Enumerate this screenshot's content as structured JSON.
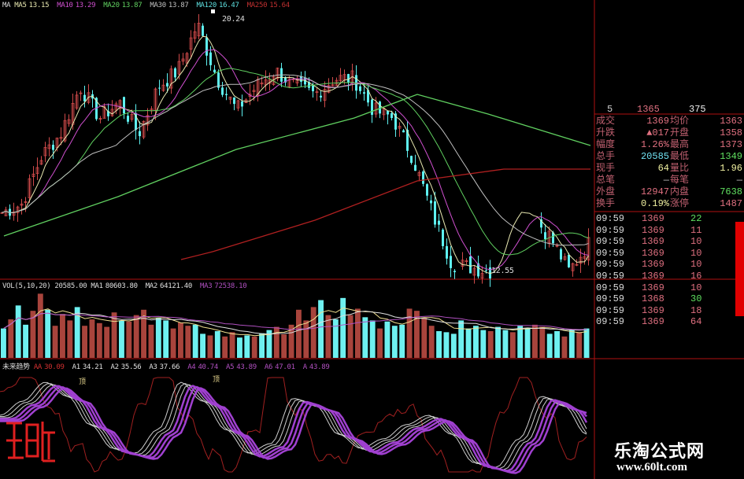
{
  "colors": {
    "up": "#d04a4a",
    "down": "#5ef0f0",
    "ma5": "#ffffff",
    "ma10": "#d050d0",
    "ma20": "#60d060",
    "ma30": "#c0c0c0",
    "ma120": "#5ee0e0",
    "ma250": "#c03030",
    "border": "#b01010"
  },
  "price_legend": {
    "label": "MA",
    "items": [
      {
        "name": "MA5",
        "value": "13.15",
        "color": "#e8e8b0"
      },
      {
        "name": "MA10",
        "value": "13.29",
        "color": "#d050d0"
      },
      {
        "name": "MA20",
        "value": "13.87",
        "color": "#60d060"
      },
      {
        "name": "MA30",
        "value": "13.87",
        "color": "#c0c0c0"
      },
      {
        "name": "MA120",
        "value": "16.47",
        "color": "#5ee0e0"
      },
      {
        "name": "MA250",
        "value": "15.64",
        "color": "#c03030"
      }
    ]
  },
  "annotations": {
    "high": "20.24",
    "low": "12.55",
    "top_marker": "顶"
  },
  "volume_legend": {
    "label": "VOL(5,10,20)",
    "value": "20585.00",
    "items": [
      {
        "name": "MA1",
        "value": "80603.80",
        "color": "#e0e0e0"
      },
      {
        "name": "MA2",
        "value": "64121.40",
        "color": "#e0e0e0"
      },
      {
        "name": "MA3",
        "value": "72538.10",
        "color": "#b050c0"
      }
    ]
  },
  "indicator_legend": {
    "label": "未来趋势",
    "items": [
      {
        "name": "AA",
        "value": "30.09",
        "color": "#d03030"
      },
      {
        "name": "A1",
        "value": "34.21",
        "color": "#e0e0e0"
      },
      {
        "name": "A2",
        "value": "35.56",
        "color": "#e0e0e0"
      },
      {
        "name": "A3",
        "value": "37.66",
        "color": "#e0e0e0"
      },
      {
        "name": "A4",
        "value": "40.74",
        "color": "#b050c0"
      },
      {
        "name": "A5",
        "value": "43.89",
        "color": "#b050c0"
      },
      {
        "name": "A6",
        "value": "47.01",
        "color": "#b050c0"
      },
      {
        "name": "A",
        "value": "43.89",
        "color": "#b050c0"
      }
    ]
  },
  "quote_panel": {
    "top_rows": [
      {
        "label": "5",
        "price": "1365",
        "vol": "375"
      }
    ],
    "rows": [
      {
        "l1": "成交",
        "v1": "1369",
        "c1": "#e07080",
        "l2": "均价",
        "v2": "1363",
        "c2": "#e07080"
      },
      {
        "l1": "升跌",
        "v1": "▲017",
        "c1": "#e07080",
        "l2": "开盘",
        "v2": "1358",
        "c2": "#e07080"
      },
      {
        "l1": "幅度",
        "v1": "1.26%",
        "c1": "#e07080",
        "l2": "最高",
        "v2": "1373",
        "c2": "#e07080"
      },
      {
        "l1": "总手",
        "v1": "20585",
        "c1": "#70e0f0",
        "l2": "最低",
        "v2": "1349",
        "c2": "#60e060"
      },
      {
        "l1": "现手",
        "v1": "64",
        "c1": "#f0f0a0",
        "l2": "量比",
        "v2": "1.96",
        "c2": "#f0f0a0"
      },
      {
        "l1": "总笔",
        "v1": "—",
        "c1": "#c0c0c0",
        "l2": "每笔",
        "v2": "—",
        "c2": "#c0c0c0"
      },
      {
        "l1": "外盘",
        "v1": "12947",
        "c1": "#e07080",
        "l2": "内盘",
        "v2": "7638",
        "c2": "#60e060"
      },
      {
        "l1": "换手",
        "v1": "0.19%",
        "c1": "#f0f0a0",
        "l2": "涨停",
        "v2": "1487",
        "c2": "#e07080"
      }
    ],
    "ticks": [
      {
        "time": "09:59",
        "price": "1369",
        "vol": "22",
        "vc": "#60e060"
      },
      {
        "time": "09:59",
        "price": "1369",
        "vol": "11",
        "vc": "#e07080"
      },
      {
        "time": "09:59",
        "price": "1369",
        "vol": "10",
        "vc": "#e07080"
      },
      {
        "time": "09:59",
        "price": "1369",
        "vol": "10",
        "vc": "#e07080"
      },
      {
        "time": "09:59",
        "price": "1369",
        "vol": "10",
        "vc": "#e07080"
      },
      {
        "time": "09:59",
        "price": "1369",
        "vol": "16",
        "vc": "#e07080"
      },
      {
        "time": "09:59",
        "price": "1369",
        "vol": "10",
        "vc": "#e07080"
      },
      {
        "time": "09:59",
        "price": "1368",
        "vol": "30",
        "vc": "#60e060"
      },
      {
        "time": "09:59",
        "price": "1369",
        "vol": "18",
        "vc": "#e07080"
      },
      {
        "time": "09:59",
        "price": "1369",
        "vol": "64",
        "vc": "#e07080"
      }
    ]
  },
  "watermark": {
    "title": "乐淘公式网",
    "url": "www.60lt.com"
  },
  "chart_data": [
    {
      "type": "candlestick",
      "title": "",
      "ylim": [
        12.55,
        20.24
      ],
      "close_keypoints": [
        14.41,
        14.65,
        16.05,
        16.74,
        18.14,
        17.21,
        17.68,
        16.74,
        18.14,
        18.61,
        20.0,
        18.38,
        17.44,
        18.14,
        18.61,
        18.14,
        17.91,
        18.38,
        18.38,
        17.44,
        17.21,
        16.05,
        14.41,
        12.9,
        12.78,
        12.67,
        14.65,
        14.41,
        13.72,
        12.67,
        13.48
      ]
    },
    {
      "type": "bar",
      "title": "VOL(5,10,20)",
      "values": [
        55000,
        72000,
        98000,
        62000,
        88000,
        120000,
        90000,
        60000,
        82000,
        70000,
        95000,
        60000,
        72000,
        65000,
        58000,
        85000,
        70000,
        68000,
        80000,
        90000,
        62000,
        75000,
        70000,
        55000,
        66000,
        60000,
        62000,
        45000,
        42000,
        50000,
        40000,
        48000,
        38000,
        42000,
        40000,
        46000,
        52000,
        58000,
        44000,
        62000,
        90000,
        70000,
        95000,
        108000,
        80000,
        72000,
        112000,
        80000,
        92000,
        76000,
        70000,
        55000,
        68000,
        60000,
        62000,
        92000,
        88000,
        75000,
        60000,
        50000,
        48000,
        45000,
        70000,
        55000,
        60000,
        52000,
        50000,
        58000,
        52000,
        48000,
        60000,
        55000,
        62000,
        58000,
        45000,
        50000,
        40000,
        52000,
        48000,
        55000
      ]
    },
    {
      "type": "line",
      "title": "未来趋势",
      "ylim": [
        0,
        100
      ],
      "A_keypoints": [
        60,
        75,
        95,
        80,
        50,
        25,
        20,
        45,
        95,
        75,
        45,
        20,
        30,
        78,
        70,
        40,
        25,
        35,
        50,
        60,
        40,
        10,
        5,
        35,
        80,
        70,
        40
      ]
    }
  ]
}
